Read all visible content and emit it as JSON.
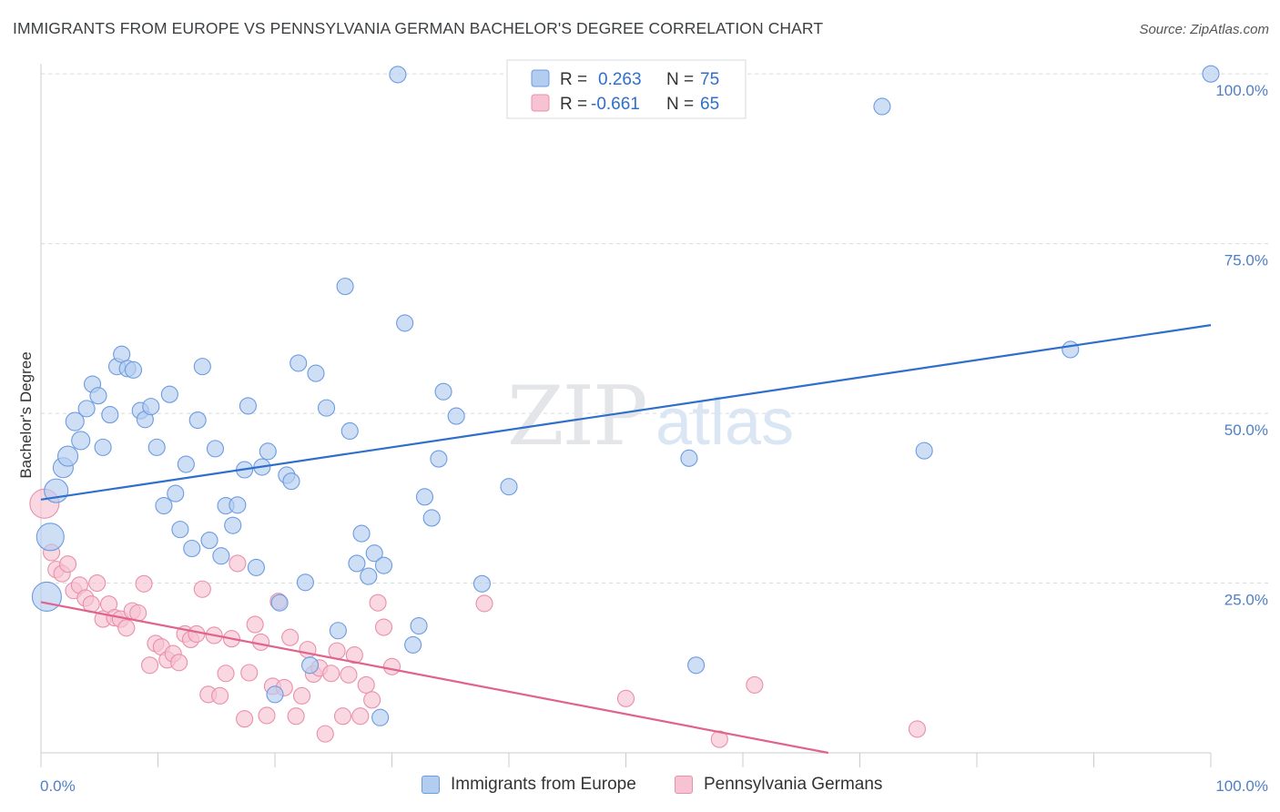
{
  "header": {
    "title": "IMMIGRANTS FROM EUROPE VS PENNSYLVANIA GERMAN BACHELOR'S DEGREE CORRELATION CHART",
    "source": "Source: ZipAtlas.com"
  },
  "watermark": {
    "zip": "ZIP",
    "atlas": "atlas"
  },
  "colors": {
    "blue_fill": "#b3cdf0",
    "blue_stroke": "#6c9be0",
    "blue_line": "#2f6fcc",
    "pink_fill": "#f7c3d3",
    "pink_stroke": "#e98fab",
    "pink_line": "#e0628d",
    "value_text": "#2f6fcc",
    "grid": "#d8dbe0"
  },
  "legend": {
    "rows": [
      {
        "r_label": "R =",
        "r_value": "0.263",
        "n_label": "N =",
        "n_value": "75"
      },
      {
        "r_label": "R =",
        "r_value": "-0.661",
        "n_label": "N =",
        "n_value": "65"
      }
    ]
  },
  "chart_data": {
    "type": "scatter",
    "title": "IMMIGRANTS FROM EUROPE VS PENNSYLVANIA GERMAN BACHELOR'S DEGREE CORRELATION CHART",
    "xlabel": "",
    "ylabel": "Bachelor's Degree",
    "xlim": [
      0,
      100
    ],
    "ylim": [
      0,
      101.5
    ],
    "x_tick_labels": [
      "0.0%",
      "100.0%"
    ],
    "y_tick_labels": [
      "25.0%",
      "50.0%",
      "75.0%",
      "100.0%"
    ],
    "y_ticks": [
      25,
      50,
      75,
      100
    ],
    "grid": true,
    "legend_position": "top-center",
    "series": [
      {
        "name": "Immigrants from Europe",
        "r": 0.263,
        "n": 75,
        "trend": {
          "x": [
            0,
            100
          ],
          "y": [
            37.3,
            63.0
          ]
        },
        "points": [
          [
            0.5,
            23.0,
            16
          ],
          [
            0.8,
            31.8,
            15
          ],
          [
            1.3,
            38.6,
            13
          ],
          [
            1.9,
            42.0,
            11
          ],
          [
            2.3,
            43.7,
            11
          ],
          [
            3.4,
            46.0,
            10
          ],
          [
            2.9,
            48.8,
            10
          ],
          [
            3.9,
            50.7,
            9
          ],
          [
            4.4,
            54.3,
            9
          ],
          [
            4.9,
            52.6,
            9
          ],
          [
            5.3,
            45.0,
            9
          ],
          [
            5.9,
            49.8,
            9
          ],
          [
            6.5,
            56.9,
            9
          ],
          [
            6.9,
            58.7,
            9
          ],
          [
            7.4,
            56.6,
            9
          ],
          [
            7.9,
            56.4,
            9
          ],
          [
            8.5,
            50.4,
            9
          ],
          [
            8.9,
            49.1,
            9
          ],
          [
            9.4,
            51.0,
            9
          ],
          [
            9.9,
            45.0,
            9
          ],
          [
            10.5,
            36.4,
            9
          ],
          [
            11.0,
            52.8,
            9
          ],
          [
            11.5,
            38.2,
            9
          ],
          [
            11.9,
            32.9,
            9
          ],
          [
            12.4,
            42.5,
            9
          ],
          [
            12.9,
            30.1,
            9
          ],
          [
            13.4,
            49.0,
            9
          ],
          [
            13.8,
            56.9,
            9
          ],
          [
            14.4,
            31.3,
            9
          ],
          [
            14.9,
            44.8,
            9
          ],
          [
            15.4,
            29.0,
            9
          ],
          [
            15.8,
            36.4,
            9
          ],
          [
            16.4,
            33.5,
            9
          ],
          [
            16.8,
            36.5,
            9
          ],
          [
            17.4,
            41.7,
            9
          ],
          [
            17.7,
            51.1,
            9
          ],
          [
            18.4,
            27.3,
            9
          ],
          [
            18.9,
            42.1,
            9
          ],
          [
            19.4,
            44.4,
            9
          ],
          [
            20.0,
            8.6,
            9
          ],
          [
            20.4,
            22.1,
            9
          ],
          [
            21.0,
            40.9,
            9
          ],
          [
            21.4,
            40.0,
            9
          ],
          [
            22.0,
            57.4,
            9
          ],
          [
            22.6,
            25.1,
            9
          ],
          [
            23.0,
            12.9,
            9
          ],
          [
            23.5,
            55.9,
            9
          ],
          [
            24.4,
            50.8,
            9
          ],
          [
            25.4,
            18.0,
            9
          ],
          [
            26.0,
            68.7,
            9
          ],
          [
            26.4,
            47.4,
            9
          ],
          [
            27.0,
            27.9,
            9
          ],
          [
            27.4,
            32.3,
            9
          ],
          [
            28.0,
            26.0,
            9
          ],
          [
            28.5,
            29.4,
            9
          ],
          [
            29.0,
            5.2,
            9
          ],
          [
            29.3,
            27.6,
            9
          ],
          [
            30.5,
            99.9,
            9
          ],
          [
            31.1,
            63.3,
            9
          ],
          [
            31.8,
            15.9,
            9
          ],
          [
            32.3,
            18.7,
            9
          ],
          [
            32.8,
            37.7,
            9
          ],
          [
            33.4,
            34.6,
            9
          ],
          [
            34.0,
            43.3,
            9
          ],
          [
            34.4,
            53.2,
            9
          ],
          [
            35.5,
            49.6,
            9
          ],
          [
            37.7,
            24.9,
            9
          ],
          [
            40.0,
            39.2,
            9
          ],
          [
            49.0,
            100.0,
            9
          ],
          [
            55.4,
            43.4,
            9
          ],
          [
            56.0,
            12.9,
            9
          ],
          [
            71.9,
            95.2,
            9
          ],
          [
            75.5,
            44.5,
            9
          ],
          [
            88.0,
            59.4,
            9
          ],
          [
            100.0,
            100.0,
            9
          ]
        ]
      },
      {
        "name": "Pennsylvania Germans",
        "r": -0.661,
        "n": 65,
        "trend": {
          "x": [
            0,
            67.3
          ],
          "y": [
            22.2,
            0.0
          ]
        },
        "points": [
          [
            0.3,
            36.7,
            16
          ],
          [
            0.9,
            29.5,
            9
          ],
          [
            1.3,
            27.0,
            9
          ],
          [
            1.8,
            26.4,
            9
          ],
          [
            2.3,
            27.8,
            9
          ],
          [
            2.8,
            23.9,
            9
          ],
          [
            3.3,
            24.7,
            9
          ],
          [
            3.8,
            22.8,
            9
          ],
          [
            4.3,
            21.9,
            9
          ],
          [
            4.8,
            25.0,
            9
          ],
          [
            5.3,
            19.7,
            9
          ],
          [
            5.8,
            21.9,
            9
          ],
          [
            6.3,
            19.9,
            9
          ],
          [
            6.8,
            19.7,
            9
          ],
          [
            7.3,
            18.4,
            9
          ],
          [
            7.8,
            20.9,
            9
          ],
          [
            8.3,
            20.6,
            9
          ],
          [
            8.8,
            24.9,
            9
          ],
          [
            9.3,
            12.9,
            9
          ],
          [
            9.8,
            16.1,
            9
          ],
          [
            10.3,
            15.6,
            9
          ],
          [
            10.8,
            13.7,
            9
          ],
          [
            11.3,
            14.6,
            9
          ],
          [
            11.8,
            13.3,
            9
          ],
          [
            12.3,
            17.5,
            9
          ],
          [
            12.8,
            16.7,
            9
          ],
          [
            13.3,
            17.5,
            9
          ],
          [
            13.8,
            24.1,
            9
          ],
          [
            14.3,
            8.6,
            9
          ],
          [
            14.8,
            17.3,
            9
          ],
          [
            15.3,
            8.4,
            9
          ],
          [
            15.8,
            11.7,
            9
          ],
          [
            16.3,
            16.8,
            9
          ],
          [
            16.8,
            27.9,
            9
          ],
          [
            17.4,
            5.0,
            9
          ],
          [
            17.8,
            11.8,
            9
          ],
          [
            18.3,
            18.9,
            9
          ],
          [
            18.8,
            16.3,
            9
          ],
          [
            19.3,
            5.5,
            9
          ],
          [
            19.8,
            9.8,
            9
          ],
          [
            20.3,
            22.3,
            9
          ],
          [
            20.8,
            9.6,
            9
          ],
          [
            21.3,
            17.0,
            9
          ],
          [
            21.8,
            5.4,
            9
          ],
          [
            22.3,
            8.4,
            9
          ],
          [
            22.8,
            15.2,
            9
          ],
          [
            23.3,
            11.6,
            9
          ],
          [
            23.8,
            12.5,
            9
          ],
          [
            24.3,
            2.8,
            9
          ],
          [
            24.8,
            11.7,
            9
          ],
          [
            25.3,
            15.0,
            9
          ],
          [
            25.8,
            5.4,
            9
          ],
          [
            26.3,
            11.5,
            9
          ],
          [
            26.8,
            14.4,
            9
          ],
          [
            27.3,
            5.4,
            9
          ],
          [
            27.8,
            10.0,
            9
          ],
          [
            28.3,
            7.8,
            9
          ],
          [
            28.8,
            22.1,
            9
          ],
          [
            29.3,
            18.5,
            9
          ],
          [
            30.0,
            12.7,
            9
          ],
          [
            37.9,
            22.0,
            9
          ],
          [
            50.0,
            8.0,
            9
          ],
          [
            58.0,
            2.0,
            9
          ],
          [
            61.0,
            10.0,
            9
          ],
          [
            74.9,
            3.5,
            9
          ]
        ]
      }
    ]
  },
  "bottom_legend": {
    "items": [
      "Immigrants from Europe",
      "Pennsylvania Germans"
    ]
  }
}
